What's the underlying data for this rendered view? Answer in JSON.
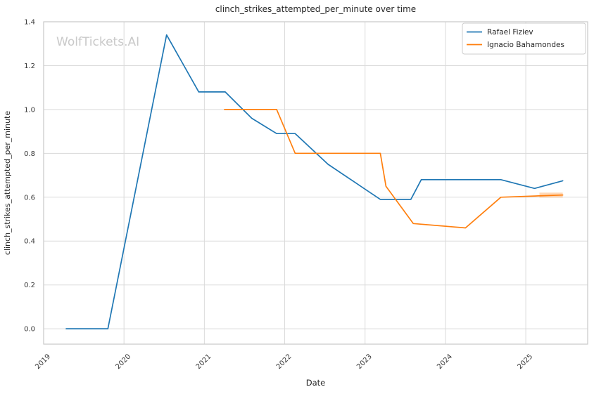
{
  "figure": {
    "watermark": "WolfTickets.AI"
  },
  "chart_data": {
    "type": "line",
    "title": "clinch_strikes_attempted_per_minute over time",
    "xlabel": "Date",
    "ylabel": "clinch_strikes_attempted_per_minute",
    "x_unit": "decimal_year",
    "xlim": [
      2019.0,
      2025.77
    ],
    "ylim": [
      -0.07,
      1.4
    ],
    "x_ticks": [
      2019,
      2020,
      2021,
      2022,
      2023,
      2024,
      2025
    ],
    "x_tick_labels": [
      "2019",
      "2020",
      "2021",
      "2022",
      "2023",
      "2024",
      "2025"
    ],
    "y_ticks": [
      0.0,
      0.2,
      0.4,
      0.6,
      0.8,
      1.0,
      1.2,
      1.4
    ],
    "y_tick_labels": [
      "0.0",
      "0.2",
      "0.4",
      "0.6",
      "0.8",
      "1.0",
      "1.2",
      "1.4"
    ],
    "grid": true,
    "legend": {
      "position": "upper right",
      "entries": [
        "Rafael Fiziev",
        "Ignacio Bahamondes"
      ]
    },
    "series": [
      {
        "name": "Rafael Fiziev",
        "color": "#1f77b4",
        "points": [
          [
            2019.28,
            0.0
          ],
          [
            2019.8,
            0.0
          ],
          [
            2020.53,
            1.34
          ],
          [
            2020.93,
            1.08
          ],
          [
            2021.26,
            1.08
          ],
          [
            2021.59,
            0.96
          ],
          [
            2021.9,
            0.89
          ],
          [
            2022.13,
            0.89
          ],
          [
            2022.54,
            0.75
          ],
          [
            2023.19,
            0.59
          ],
          [
            2023.57,
            0.59
          ],
          [
            2023.7,
            0.68
          ],
          [
            2024.69,
            0.68
          ],
          [
            2025.11,
            0.64
          ],
          [
            2025.46,
            0.675
          ]
        ]
      },
      {
        "name": "Ignacio Bahamondes",
        "color": "#ff7f0e",
        "points": [
          [
            2021.25,
            1.0
          ],
          [
            2021.9,
            1.0
          ],
          [
            2022.13,
            0.8
          ],
          [
            2023.19,
            0.8
          ],
          [
            2023.26,
            0.65
          ],
          [
            2023.6,
            0.48
          ],
          [
            2024.25,
            0.46
          ],
          [
            2024.69,
            0.6
          ],
          [
            2025.46,
            0.61
          ]
        ]
      }
    ],
    "end_highlight": {
      "series_index": 1,
      "points": [
        [
          2025.17,
          0.61
        ],
        [
          2025.46,
          0.61
        ]
      ],
      "opacity": 0.3,
      "stroke_width": 7
    },
    "colors": {
      "grid": "#dadada",
      "spine": "#c9c9c9",
      "text": "#363636",
      "watermark": "#c9c9c9",
      "legend_border": "#cccccc",
      "background": "#ffffff"
    }
  }
}
